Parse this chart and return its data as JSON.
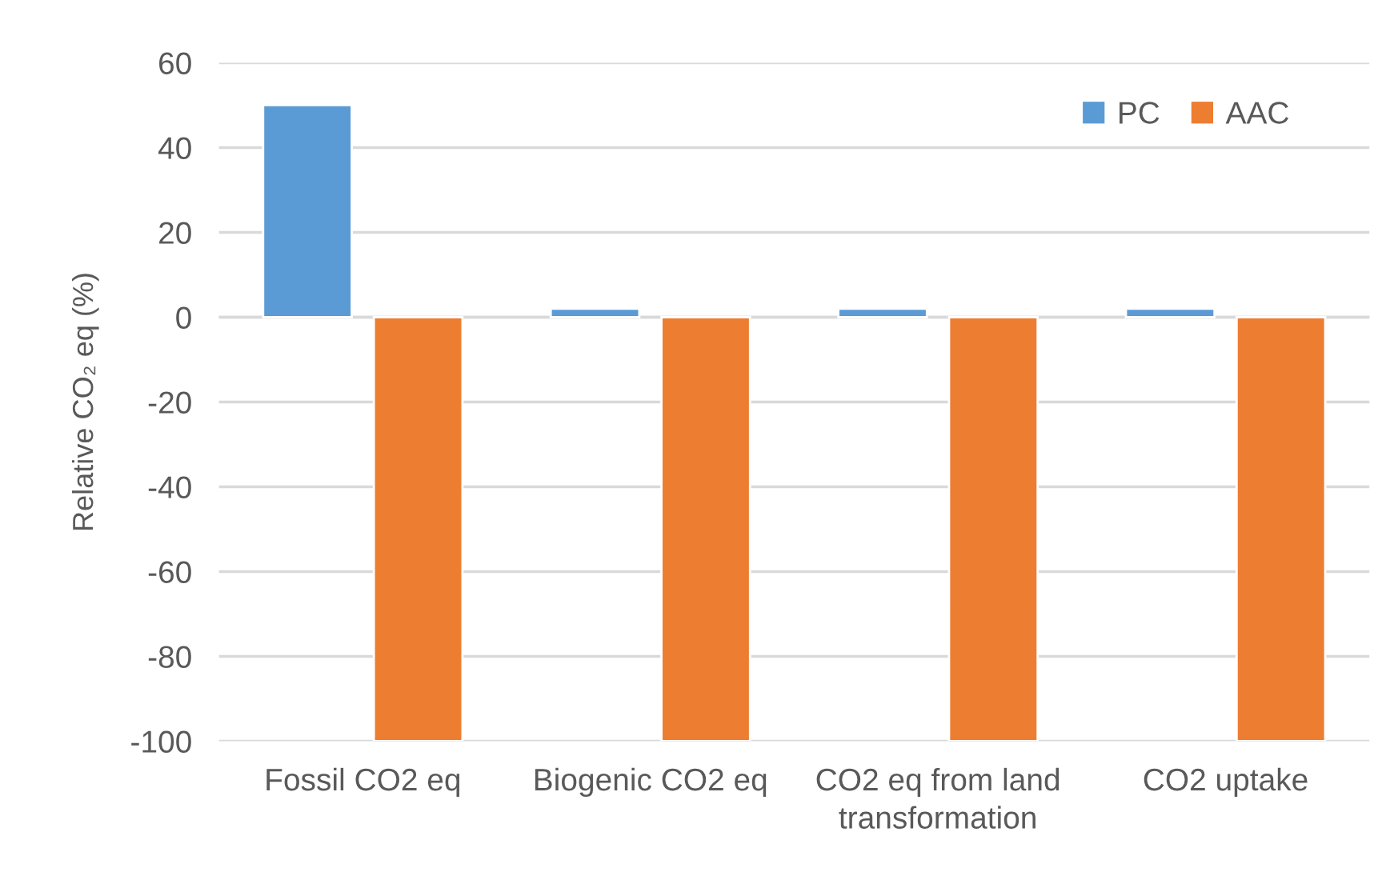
{
  "chart_data": {
    "type": "bar",
    "categories": [
      "Fossil CO2 eq",
      "Biogenic CO2 eq",
      "CO2 eq from land\ntransformation",
      "CO2 uptake"
    ],
    "series": [
      {
        "name": "PC",
        "color": "#5b9bd5",
        "values": [
          50,
          2,
          2,
          2
        ]
      },
      {
        "name": "AAC",
        "color": "#ed7d31",
        "values": [
          -100,
          -100,
          -100,
          -100
        ]
      }
    ],
    "ylabel": "Relative CO₂ eq (%)",
    "ylim": [
      -100,
      60
    ],
    "yticks": [
      -100,
      -80,
      -60,
      -40,
      -20,
      0,
      20,
      40,
      60
    ],
    "grid": "y",
    "legend": "top right"
  }
}
